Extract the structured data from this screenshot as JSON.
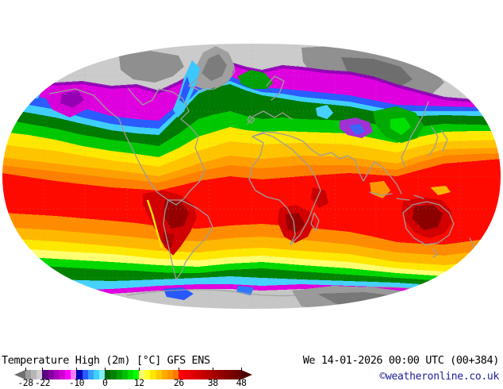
{
  "title": "Temperature High (2m) [°C] GFS ENS",
  "valid_datetime": "We 14-01-2026 00:00 UTC (00+384)",
  "copyright": "©weatheronline.co.uk",
  "colors": {
    "text": "#000000",
    "copyright": "#1c1c9a",
    "coastline": "#9c9c9c",
    "background": "#ffffff"
  },
  "legend": {
    "unit": "°C",
    "min": -28,
    "max": 48,
    "step": 2,
    "tick_labels": [
      "-28",
      "-22",
      "-10",
      "0",
      "12",
      "26",
      "38",
      "48"
    ],
    "tick_values": [
      -28,
      -22,
      -10,
      0,
      12,
      26,
      38,
      48
    ],
    "left_arrow_color": "#6f6f6f",
    "right_arrow_color": "#4a0000",
    "segments": [
      "#9c9c9c",
      "#b6b6b6",
      "#d0d0d0",
      "#5c0082",
      "#8200a0",
      "#aa00be",
      "#d000d0",
      "#ff00ff",
      "#ff7dff",
      "#0000b4",
      "#2858ff",
      "#38a0ff",
      "#40d0ff",
      "#7ceeff",
      "#006400",
      "#008200",
      "#00a000",
      "#00c000",
      "#00e000",
      "#00ff00",
      "#ffff70",
      "#ffff2a",
      "#ffe600",
      "#ffc800",
      "#ffaa00",
      "#ff9600",
      "#ff7800",
      "#ff0000",
      "#f00000",
      "#e10000",
      "#d20000",
      "#c30000",
      "#b40000",
      "#a50000",
      "#960000",
      "#870000",
      "#780000",
      "#690000"
    ]
  },
  "chart_data": {
    "type": "heatmap",
    "title": "Temperature High (2m) [°C] GFS ENS",
    "projection": "world map, elliptical (Robinson-like), centered near 0°E",
    "legend_range_c": [
      -28,
      48
    ],
    "zones": [
      {
        "region": "Arctic, northern Canada, Greenland, central Siberia",
        "approx_temp_c": "below -24",
        "color": "gray shades"
      },
      {
        "region": "Sub-arctic band: central Canada, Scandinavia, central Asia / Mongolia",
        "approx_temp_c": "-22 to -10",
        "color": "purple / magenta"
      },
      {
        "region": "Northern USA border, eastern Europe, Tibet, north China",
        "approx_temp_c": "-10 to 0",
        "color": "blue / cyan"
      },
      {
        "region": "Western Europe, North Atlantic, central USA, east China coast",
        "approx_temp_c": "0 to 12",
        "color": "green"
      },
      {
        "region": "Subtropics: southern USA, North Africa, Middle East, north India",
        "approx_temp_c": "12 to 26",
        "color": "yellow / orange"
      },
      {
        "region": "Tropics: equatorial oceans, Amazon, central Africa, SE Asia, north Australia",
        "approx_temp_c": "26 to 38",
        "color": "red"
      },
      {
        "region": "Hot spots: interior South America, southern Africa, central Australia",
        "approx_temp_c": "38 to 48",
        "color": "dark red"
      },
      {
        "region": "Southern mid-latitude ocean belt",
        "approx_temp_c": "0 to 12",
        "color": "green"
      },
      {
        "region": "Southern Ocean / Antarctic coast",
        "approx_temp_c": "-10 to 0",
        "color": "cyan with blue patches"
      },
      {
        "region": "Antarctic margin",
        "approx_temp_c": "-22 to -10",
        "color": "magenta fringe"
      },
      {
        "region": "Antarctica interior",
        "approx_temp_c": "below -24",
        "color": "gray"
      }
    ]
  }
}
